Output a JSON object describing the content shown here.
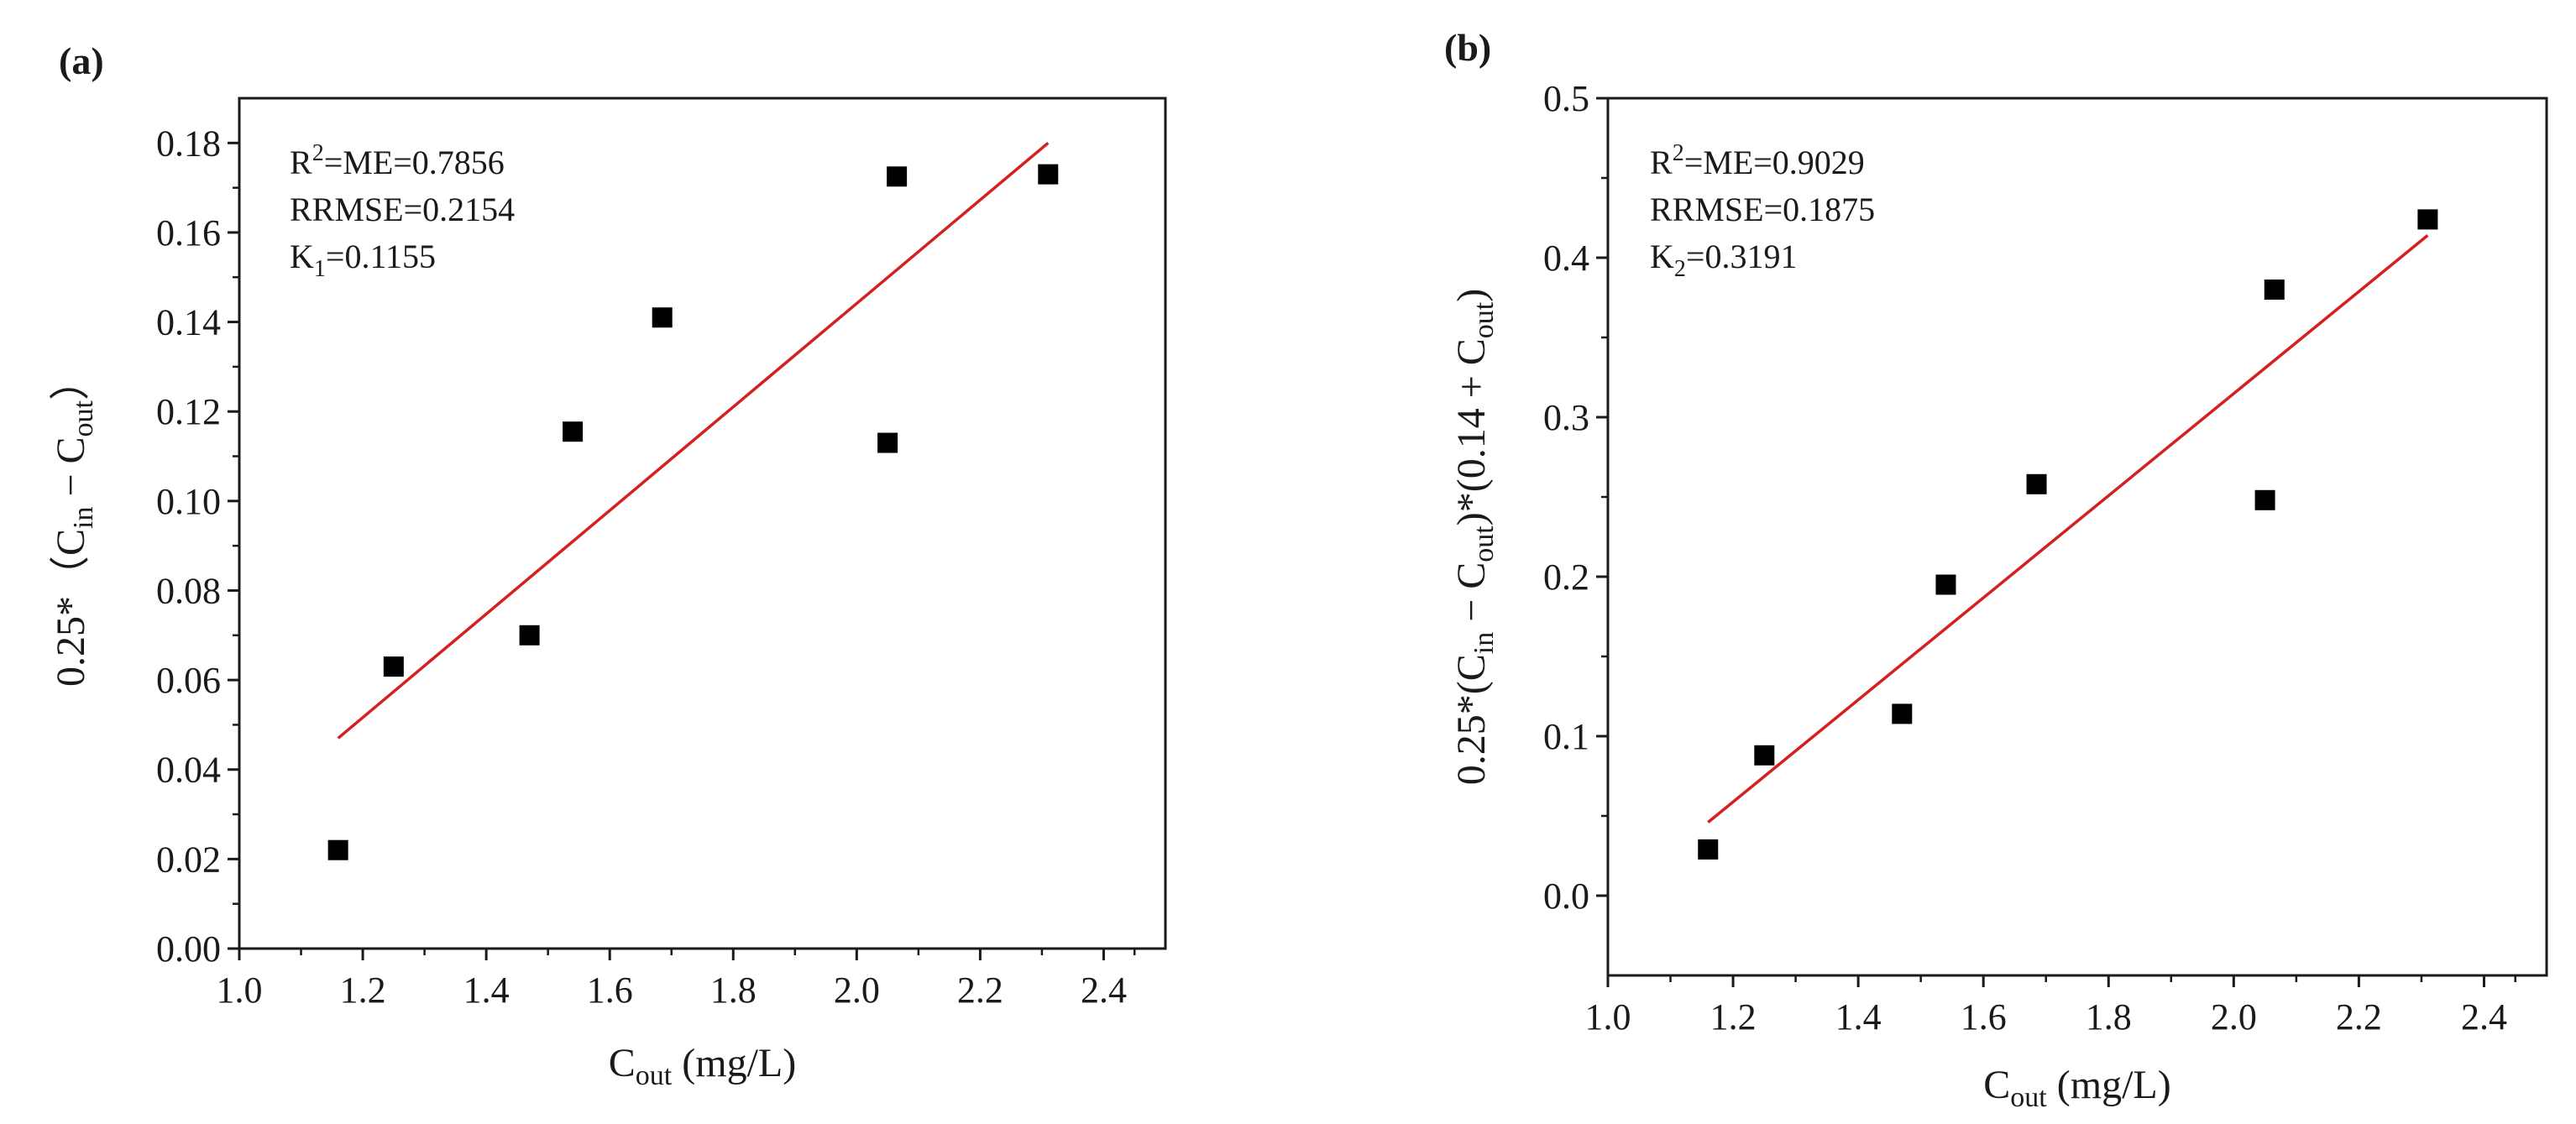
{
  "chart_data": [
    {
      "type": "scatter",
      "panel_label": "(a)",
      "xlabel": {
        "main": "C",
        "sub": "out",
        "tail": " (mg/L)"
      },
      "ylabel": [
        {
          "t": "0.25*（C"
        },
        {
          "t": "in",
          "sub": true
        },
        {
          "t": " − C"
        },
        {
          "t": "out",
          "sub": true
        },
        {
          "t": "）"
        }
      ],
      "xlim": [
        1.0,
        2.5
      ],
      "ylim": [
        0.0,
        0.19
      ],
      "x_ticks": [
        1.0,
        1.2,
        1.4,
        1.6,
        1.8,
        2.0,
        2.2,
        2.4
      ],
      "x_tick_labels": [
        "1.0",
        "1.2",
        "1.4",
        "1.6",
        "1.8",
        "2.0",
        "2.2",
        "2.4"
      ],
      "y_ticks": [
        0.0,
        0.02,
        0.04,
        0.06,
        0.08,
        0.1,
        0.12,
        0.14,
        0.16,
        0.18
      ],
      "y_tick_labels": [
        "0.00",
        "0.02",
        "0.04",
        "0.06",
        "0.08",
        "0.10",
        "0.12",
        "0.14",
        "0.16",
        "0.18"
      ],
      "points": [
        {
          "x": 1.16,
          "y": 0.022
        },
        {
          "x": 1.25,
          "y": 0.063
        },
        {
          "x": 1.47,
          "y": 0.07
        },
        {
          "x": 1.54,
          "y": 0.1155
        },
        {
          "x": 1.685,
          "y": 0.141
        },
        {
          "x": 2.05,
          "y": 0.113
        },
        {
          "x": 2.065,
          "y": 0.1725
        },
        {
          "x": 2.31,
          "y": 0.173
        }
      ],
      "fit_line": {
        "x": [
          1.16,
          2.31
        ],
        "y": [
          0.047,
          0.18
        ]
      },
      "annotations": [
        {
          "base": "R",
          "sup": "2",
          "tail": "=ME=0.7856"
        },
        {
          "base": "RRMSE=0.2154"
        },
        {
          "base": "K",
          "sub": "1",
          "tail": "=0.1155"
        }
      ],
      "marker_color": "#000000",
      "line_color": "#d42020",
      "grid": false
    },
    {
      "type": "scatter",
      "panel_label": "(b)",
      "xlabel": {
        "main": "C",
        "sub": "out",
        "tail": " (mg/L)"
      },
      "ylabel": [
        {
          "t": "0.25*(C"
        },
        {
          "t": "in",
          "sub": true
        },
        {
          "t": " − C"
        },
        {
          "t": "out",
          "sub": true
        },
        {
          "t": ")*(0.14 + C"
        },
        {
          "t": "out",
          "sub": true
        },
        {
          "t": ")"
        }
      ],
      "xlim": [
        1.0,
        2.5
      ],
      "ylim": [
        -0.05,
        0.5
      ],
      "x_ticks": [
        1.0,
        1.2,
        1.4,
        1.6,
        1.8,
        2.0,
        2.2,
        2.4
      ],
      "x_tick_labels": [
        "1.0",
        "1.2",
        "1.4",
        "1.6",
        "1.8",
        "2.0",
        "2.2",
        "2.4"
      ],
      "y_ticks": [
        0.0,
        0.1,
        0.2,
        0.3,
        0.4,
        0.5
      ],
      "y_tick_labels": [
        "0.0",
        "0.1",
        "0.2",
        "0.3",
        "0.4",
        "0.5"
      ],
      "points": [
        {
          "x": 1.16,
          "y": 0.029
        },
        {
          "x": 1.25,
          "y": 0.088
        },
        {
          "x": 1.47,
          "y": 0.114
        },
        {
          "x": 1.54,
          "y": 0.195
        },
        {
          "x": 1.685,
          "y": 0.258
        },
        {
          "x": 2.05,
          "y": 0.248
        },
        {
          "x": 2.065,
          "y": 0.38
        },
        {
          "x": 2.31,
          "y": 0.424
        }
      ],
      "fit_line": {
        "x": [
          1.16,
          2.31
        ],
        "y": [
          0.046,
          0.414
        ]
      },
      "annotations": [
        {
          "base": "R",
          "sup": "2",
          "tail": "=ME=0.9029"
        },
        {
          "base": "RRMSE=0.1875"
        },
        {
          "base": "K",
          "sub": "2",
          "tail": "=0.3191"
        }
      ],
      "marker_color": "#000000",
      "line_color": "#d42020",
      "grid": false
    }
  ]
}
